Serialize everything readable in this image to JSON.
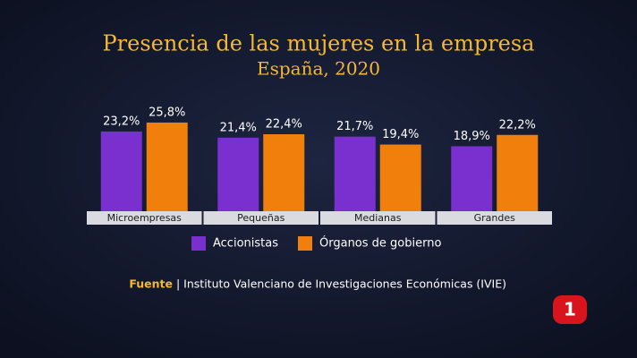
{
  "chart_data": {
    "type": "bar",
    "title": "Presencia de las mujeres en la empresa",
    "subtitle": "España, 2020",
    "categories": [
      "Microempresas",
      "Pequeñas",
      "Medianas",
      "Grandes"
    ],
    "series": [
      {
        "name": "Accionistas",
        "color": "#7a2fcf",
        "values": [
          23.2,
          21.4,
          21.7,
          18.9
        ],
        "value_labels": [
          "23,2%",
          "21,4%",
          "21,7%",
          "18,9%"
        ]
      },
      {
        "name": "Órganos de gobierno",
        "color": "#f07f0c",
        "values": [
          25.8,
          22.4,
          19.4,
          22.2
        ],
        "value_labels": [
          "25,8%",
          "22,4%",
          "19,4%",
          "22,2%"
        ]
      }
    ],
    "source": {
      "label": "Fuente",
      "text": "| Instituto Valenciano de Investigaciones Económicas (IVIE)"
    },
    "channel_logo": "1"
  }
}
